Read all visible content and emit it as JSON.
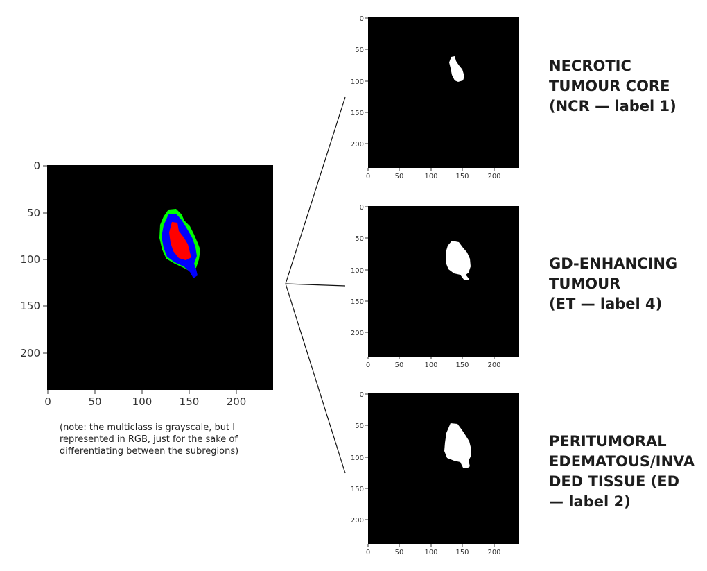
{
  "main_plot": {
    "x_ticks": [
      "0",
      "50",
      "100",
      "150",
      "200"
    ],
    "y_ticks": [
      "0",
      "50",
      "100",
      "150",
      "200"
    ],
    "caption": "(note: the multiclass is grayscale, but I represented in RGB, just for the sake of differentiating between the subregions)"
  },
  "panel_ticks": {
    "x": [
      "0",
      "50",
      "100",
      "150",
      "200"
    ],
    "y": [
      "0",
      "50",
      "100",
      "150",
      "200"
    ]
  },
  "panels": [
    {
      "label": "NECROTIC\nTUMOUR CORE\n(NCR — label 1)"
    },
    {
      "label": "GD-ENHANCING\nTUMOUR\n(ET — label 4)"
    },
    {
      "label": "PERITUMORAL\nEDEMATOUS/INVADED TISSUE (ED — label 2)"
    }
  ],
  "colors": {
    "background_image": "#000000",
    "ed_region": "#00ff00",
    "et_region": "#0000ff",
    "ncr_region": "#ff0000",
    "mask": "#ffffff"
  }
}
